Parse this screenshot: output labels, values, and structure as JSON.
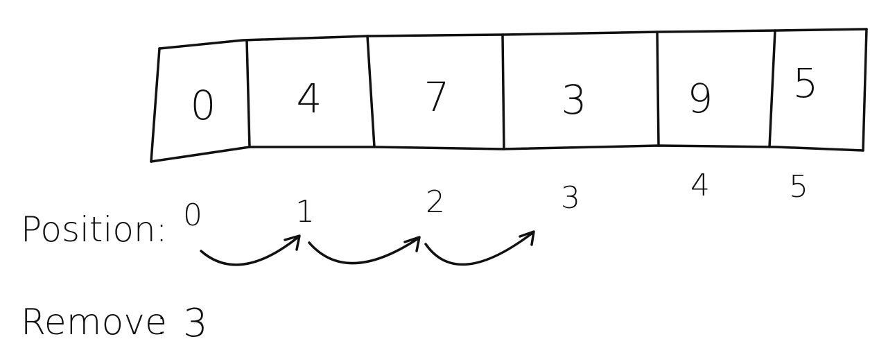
{
  "array": {
    "values": [
      "0",
      "4",
      "7",
      "3",
      "9",
      "5"
    ]
  },
  "indices": [
    "0",
    "1",
    "2",
    "3",
    "4",
    "5"
  ],
  "labels": {
    "position": "Position:",
    "remove_word": "Remove",
    "remove_colon": ":",
    "remove_value": "3"
  },
  "arrows": {
    "count": 3
  }
}
